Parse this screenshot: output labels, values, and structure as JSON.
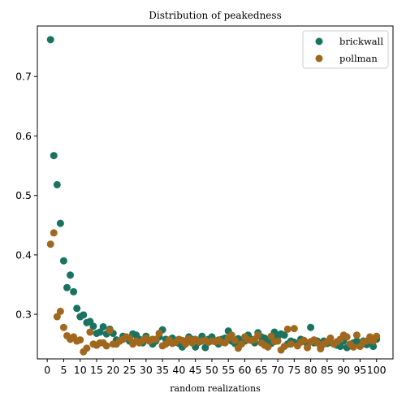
{
  "chart_data": {
    "type": "scatter",
    "title": "Distribution of peakedness",
    "xlabel": "random realizations",
    "ylabel": "",
    "xlim": [
      -3,
      105
    ],
    "ylim": [
      0.225,
      0.785
    ],
    "xticks": [
      0,
      5,
      10,
      15,
      20,
      25,
      30,
      35,
      40,
      45,
      50,
      55,
      60,
      65,
      70,
      75,
      80,
      85,
      90,
      95,
      100
    ],
    "xtick_labels": [
      "0",
      "5",
      "10",
      "15",
      "20",
      "25",
      "30",
      "35",
      "40",
      "45",
      "50",
      "55",
      "60",
      "65",
      "70",
      "75",
      "80",
      "85",
      "90",
      "95",
      "100"
    ],
    "yticks": [
      0.3,
      0.4,
      0.5,
      0.6,
      0.7
    ],
    "ytick_labels": [
      "0.3",
      "0.4",
      "0.5",
      "0.6",
      "0.7"
    ],
    "grid": false,
    "legend_position": "top-right",
    "series": [
      {
        "name": "brickwall",
        "color": "#1a7360",
        "x": [
          1,
          2,
          3,
          4,
          5,
          6,
          7,
          8,
          9,
          10,
          11,
          12,
          13,
          14,
          15,
          16,
          17,
          18,
          19,
          20,
          21,
          22,
          23,
          24,
          25,
          26,
          27,
          28,
          29,
          30,
          31,
          32,
          33,
          34,
          35,
          36,
          37,
          38,
          39,
          40,
          41,
          42,
          43,
          44,
          45,
          46,
          47,
          48,
          49,
          50,
          51,
          52,
          53,
          54,
          55,
          56,
          57,
          58,
          59,
          60,
          61,
          62,
          63,
          64,
          65,
          66,
          67,
          68,
          69,
          70,
          71,
          72,
          73,
          74,
          75,
          76,
          77,
          78,
          79,
          80,
          81,
          82,
          83,
          84,
          85,
          86,
          87,
          88,
          89,
          90,
          91,
          92,
          93,
          94,
          95,
          96,
          97,
          98,
          99,
          100
        ],
        "y": [
          0.762,
          0.567,
          0.518,
          0.453,
          0.39,
          0.345,
          0.366,
          0.338,
          0.31,
          0.296,
          0.299,
          0.286,
          0.288,
          0.28,
          0.268,
          0.27,
          0.279,
          0.267,
          0.275,
          0.268,
          0.257,
          0.255,
          0.263,
          0.26,
          0.255,
          0.267,
          0.265,
          0.258,
          0.252,
          0.263,
          0.256,
          0.25,
          0.255,
          0.262,
          0.274,
          0.258,
          0.255,
          0.26,
          0.255,
          0.251,
          0.245,
          0.255,
          0.262,
          0.258,
          0.245,
          0.253,
          0.263,
          0.244,
          0.258,
          0.262,
          0.255,
          0.25,
          0.258,
          0.26,
          0.272,
          0.255,
          0.251,
          0.259,
          0.256,
          0.255,
          0.265,
          0.258,
          0.252,
          0.269,
          0.262,
          0.26,
          0.255,
          0.251,
          0.27,
          0.262,
          0.267,
          0.265,
          0.25,
          0.255,
          0.253,
          0.249,
          0.258,
          0.255,
          0.249,
          0.278,
          0.252,
          0.255,
          0.247,
          0.255,
          0.251,
          0.253,
          0.25,
          0.248,
          0.246,
          0.255,
          0.244,
          0.247,
          0.252,
          0.255,
          0.25,
          0.255,
          0.249,
          0.256,
          0.246,
          0.258
        ]
      },
      {
        "name": "pollman",
        "color": "#a0681e",
        "x": [
          1,
          2,
          3,
          4,
          5,
          6,
          7,
          8,
          9,
          10,
          11,
          12,
          13,
          14,
          15,
          16,
          17,
          18,
          19,
          20,
          21,
          22,
          23,
          24,
          25,
          26,
          27,
          28,
          29,
          30,
          31,
          32,
          33,
          34,
          35,
          36,
          37,
          38,
          39,
          40,
          41,
          42,
          43,
          44,
          45,
          46,
          47,
          48,
          49,
          50,
          51,
          52,
          53,
          54,
          55,
          56,
          57,
          58,
          59,
          60,
          61,
          62,
          63,
          64,
          65,
          66,
          67,
          68,
          69,
          70,
          71,
          72,
          73,
          74,
          75,
          76,
          77,
          78,
          79,
          80,
          81,
          82,
          83,
          84,
          85,
          86,
          87,
          88,
          89,
          90,
          91,
          92,
          93,
          94,
          95,
          96,
          97,
          98,
          99,
          100
        ],
        "y": [
          0.418,
          0.437,
          0.296,
          0.305,
          0.278,
          0.264,
          0.258,
          0.262,
          0.255,
          0.257,
          0.237,
          0.243,
          0.27,
          0.25,
          0.248,
          0.252,
          0.252,
          0.247,
          0.273,
          0.25,
          0.25,
          0.255,
          0.258,
          0.262,
          0.26,
          0.25,
          0.255,
          0.252,
          0.256,
          0.26,
          0.255,
          0.258,
          0.258,
          0.268,
          0.247,
          0.25,
          0.257,
          0.251,
          0.253,
          0.258,
          0.256,
          0.25,
          0.259,
          0.252,
          0.258,
          0.254,
          0.255,
          0.256,
          0.253,
          0.255,
          0.254,
          0.257,
          0.253,
          0.252,
          0.26,
          0.265,
          0.256,
          0.243,
          0.25,
          0.262,
          0.257,
          0.256,
          0.258,
          0.265,
          0.252,
          0.248,
          0.245,
          0.263,
          0.254,
          0.255,
          0.24,
          0.246,
          0.275,
          0.25,
          0.276,
          0.247,
          0.253,
          0.256,
          0.244,
          0.254,
          0.257,
          0.252,
          0.242,
          0.25,
          0.254,
          0.26,
          0.25,
          0.254,
          0.258,
          0.265,
          0.262,
          0.25,
          0.245,
          0.265,
          0.246,
          0.253,
          0.255,
          0.262,
          0.255,
          0.263
        ]
      }
    ]
  }
}
